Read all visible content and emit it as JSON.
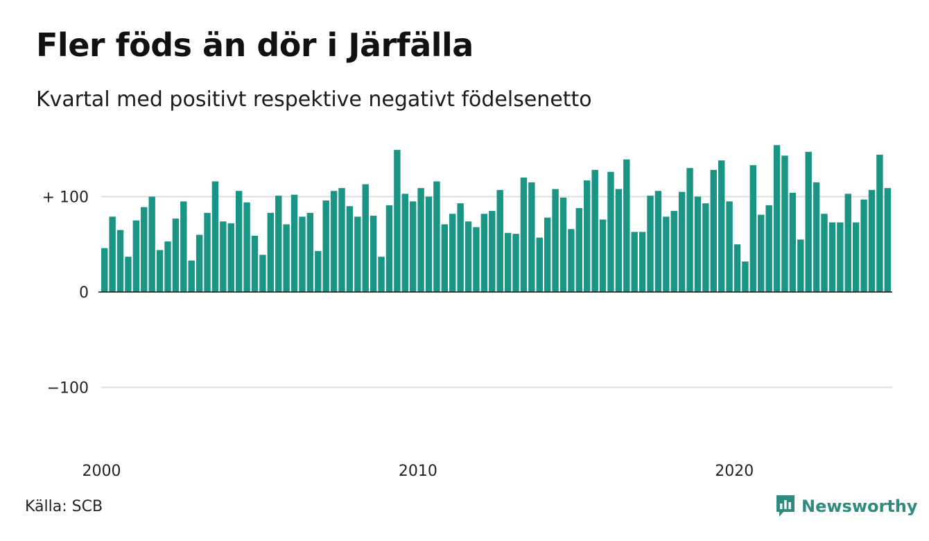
{
  "title": "Fler föds än dör i Järfälla",
  "subtitle": "Kvartal med positivt respektive negativt födelsenetto",
  "source": "Källa: SCB",
  "brand": {
    "name": "Newsworthy",
    "icon": "newsworthy-logo-icon",
    "color": "#2e8b7f"
  },
  "chart_data": {
    "type": "bar",
    "bar_color": "#1a9585",
    "x_ticks": [
      "2000",
      "2010",
      "2020"
    ],
    "y_ticks": [
      {
        "value": 100,
        "label": "+ 100"
      },
      {
        "value": 0,
        "label": "0"
      },
      {
        "value": -100,
        "label": "−100"
      }
    ],
    "ylim": [
      -165,
      165
    ],
    "grid": true,
    "values": [
      46,
      79,
      65,
      37,
      75,
      89,
      100,
      44,
      53,
      77,
      95,
      33,
      60,
      83,
      116,
      74,
      72,
      106,
      94,
      59,
      39,
      83,
      101,
      71,
      102,
      79,
      83,
      43,
      96,
      106,
      109,
      90,
      79,
      113,
      80,
      37,
      91,
      149,
      103,
      95,
      109,
      100,
      116,
      71,
      82,
      93,
      74,
      68,
      82,
      85,
      107,
      62,
      61,
      120,
      115,
      57,
      78,
      108,
      99,
      66,
      88,
      117,
      128,
      76,
      126,
      108,
      139,
      63,
      63,
      101,
      106,
      79,
      85,
      105,
      130,
      100,
      93,
      128,
      138,
      95,
      50,
      32,
      133,
      81,
      91,
      154,
      143,
      104,
      55,
      147,
      115,
      82,
      73,
      73,
      103,
      73,
      97,
      107,
      144,
      109
    ]
  }
}
